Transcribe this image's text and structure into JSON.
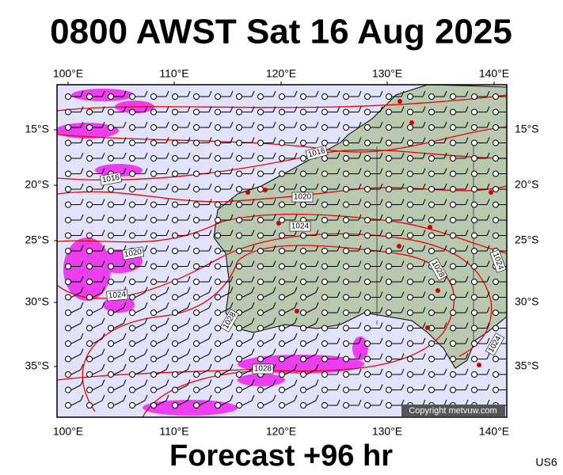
{
  "header": {
    "title": "0800 AWST Sat 16 Aug 2025"
  },
  "map": {
    "lon_labels": [
      "100°E",
      "110°E",
      "120°E",
      "130°E",
      "140°E"
    ],
    "lat_labels": [
      "15°S",
      "20°S",
      "25°S",
      "30°S",
      "35°S"
    ],
    "isobar_labels": [
      "1016",
      "1016",
      "1020",
      "1024",
      "1020",
      "1024",
      "1028",
      "1028",
      "1028",
      "1024",
      "1024"
    ],
    "copyright": "Copyright metvuw.com"
  },
  "footer": {
    "forecast": "Forecast +96 hr",
    "code": "US6"
  }
}
